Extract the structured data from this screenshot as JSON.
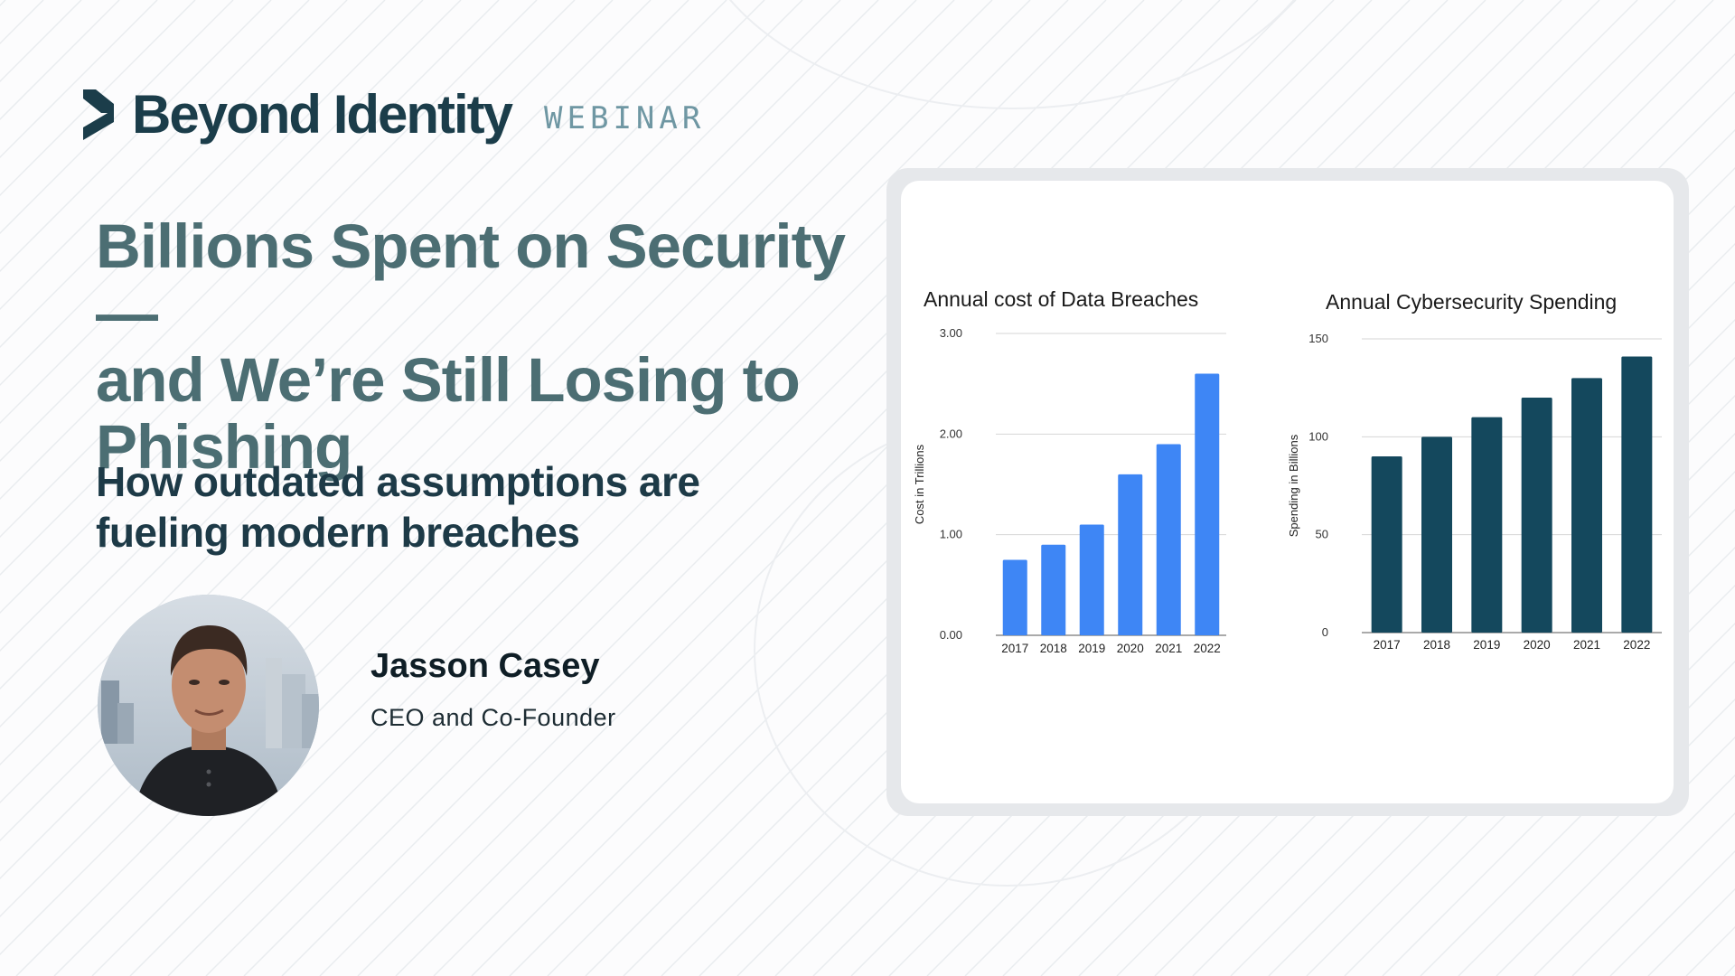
{
  "header": {
    "brand": "Beyond Identity",
    "tag": "WEBINAR"
  },
  "main": {
    "title_lines": [
      "Billions Spent on Security—",
      "and We’re Still Losing to",
      "Phishing"
    ],
    "subtitle_lines": [
      "How outdated assumptions are",
      "fueling modern breaches"
    ]
  },
  "speaker": {
    "name": "Jasson Casey",
    "role": "CEO and Co-Founder"
  },
  "colors": {
    "accent_blue": "#3e86f5",
    "accent_teal": "#14485d",
    "title_text": "#4c6e73",
    "brand_text": "#1b3d4a"
  },
  "chart_data": [
    {
      "type": "bar",
      "title": "Annual cost of Data Breaches",
      "xlabel": "",
      "ylabel": "Cost in Trillions",
      "categories": [
        "2017",
        "2018",
        "2019",
        "2020",
        "2021",
        "2022"
      ],
      "values": [
        0.75,
        0.9,
        1.1,
        1.6,
        1.9,
        2.6
      ],
      "ylim": [
        0,
        3
      ],
      "yticks": [
        "0.00",
        "1.00",
        "2.00",
        "3.00"
      ],
      "color": "#3e86f5",
      "grid": true
    },
    {
      "type": "bar",
      "title": "Annual Cybersecurity Spending",
      "xlabel": "",
      "ylabel": "Spending in Billions",
      "categories": [
        "2017",
        "2018",
        "2019",
        "2020",
        "2021",
        "2022"
      ],
      "values": [
        90,
        100,
        110,
        120,
        130,
        141
      ],
      "ylim": [
        0,
        150
      ],
      "yticks": [
        "0",
        "50",
        "100",
        "150"
      ],
      "color": "#14485d",
      "grid": true
    }
  ]
}
